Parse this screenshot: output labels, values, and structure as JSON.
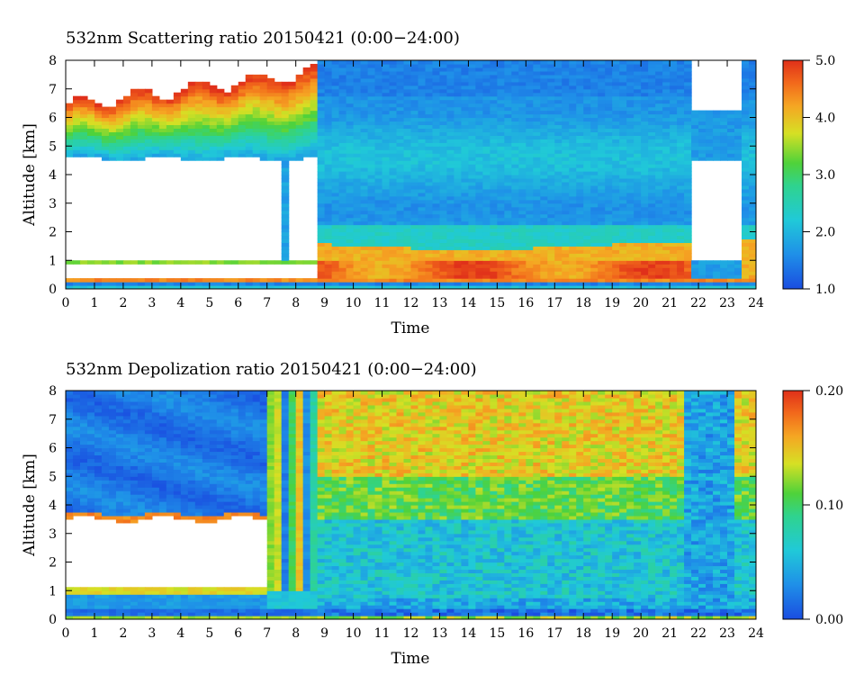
{
  "chart_data": [
    {
      "type": "heatmap",
      "title": "532nm Scattering ratio  20150421 (0:00−24:00)",
      "xlabel": "Time",
      "ylabel": "Altitude [km]",
      "xlim": [
        0,
        24
      ],
      "ylim": [
        0,
        8
      ],
      "x_ticks": [
        "0",
        "1",
        "2",
        "3",
        "4",
        "5",
        "6",
        "7",
        "8",
        "9",
        "10",
        "11",
        "12",
        "13",
        "14",
        "15",
        "16",
        "17",
        "18",
        "19",
        "20",
        "21",
        "22",
        "23",
        "24"
      ],
      "y_ticks": [
        "0",
        "1",
        "2",
        "3",
        "4",
        "5",
        "6",
        "7",
        "8"
      ],
      "colorbar": {
        "min": 1.0,
        "max": 5.0,
        "tick_labels": [
          "1.0",
          "2.0",
          "3.0",
          "4.0",
          "5.0"
        ]
      },
      "features": {
        "cloud_layer": {
          "x": [
            0,
            8.7
          ],
          "base_km": [
            4.5,
            4.6
          ],
          "top_km": [
            6.5,
            7.8
          ],
          "value_range": [
            2.0,
            5.0
          ]
        },
        "aerosol_boundary_layer": {
          "x": [
            9,
            21.8
          ],
          "top_km": 1.5,
          "value_range": [
            4.0,
            5.0
          ]
        },
        "free_troposphere": {
          "x": [
            9,
            21.8
          ],
          "value_range": [
            1.5,
            2.5
          ]
        },
        "surface_layer_km": 0.3,
        "no_data_regions": [
          {
            "x": [
              0,
              8.7
            ],
            "alt_km": [
              1.0,
              4.5
            ]
          },
          {
            "x": [
              21.8,
              23.6
            ],
            "alt_km": [
              1.0,
              4.5
            ]
          }
        ]
      }
    },
    {
      "type": "heatmap",
      "title": "532nm Depolization ratio  20150421 (0:00−24:00)",
      "xlabel": "Time",
      "ylabel": "Altitude [km]",
      "xlim": [
        0,
        24
      ],
      "ylim": [
        0,
        8
      ],
      "x_ticks": [
        "0",
        "1",
        "2",
        "3",
        "4",
        "5",
        "6",
        "7",
        "8",
        "9",
        "10",
        "11",
        "12",
        "13",
        "14",
        "15",
        "16",
        "17",
        "18",
        "19",
        "20",
        "21",
        "22",
        "23",
        "24"
      ],
      "y_ticks": [
        "0",
        "1",
        "2",
        "3",
        "4",
        "5",
        "6",
        "7",
        "8"
      ],
      "colorbar": {
        "min": 0.0,
        "max": 0.2,
        "tick_labels": [
          "0.00",
          "0.10",
          "0.20"
        ]
      },
      "features": {
        "cloud_layer": {
          "x": [
            0,
            7.1
          ],
          "alt_km": [
            3.5,
            8
          ],
          "value_range": [
            0.01,
            0.04
          ]
        },
        "upper_aerosol": {
          "x": [
            8.8,
            21.6
          ],
          "alt_km": [
            5,
            8
          ],
          "value_range": [
            0.12,
            0.18
          ]
        },
        "mid_layer": {
          "x": [
            8.8,
            21.6
          ],
          "alt_km": [
            3.5,
            5
          ],
          "value_range": [
            0.08,
            0.11
          ]
        },
        "lower_layer": {
          "x": [
            8.8,
            21.6
          ],
          "alt_km": [
            0.5,
            3.5
          ],
          "value_range": [
            0.04,
            0.07
          ]
        },
        "no_data_regions": [
          {
            "x": [
              0,
              7.1
            ],
            "alt_km": [
              1.1,
              3.4
            ]
          }
        ]
      }
    }
  ]
}
